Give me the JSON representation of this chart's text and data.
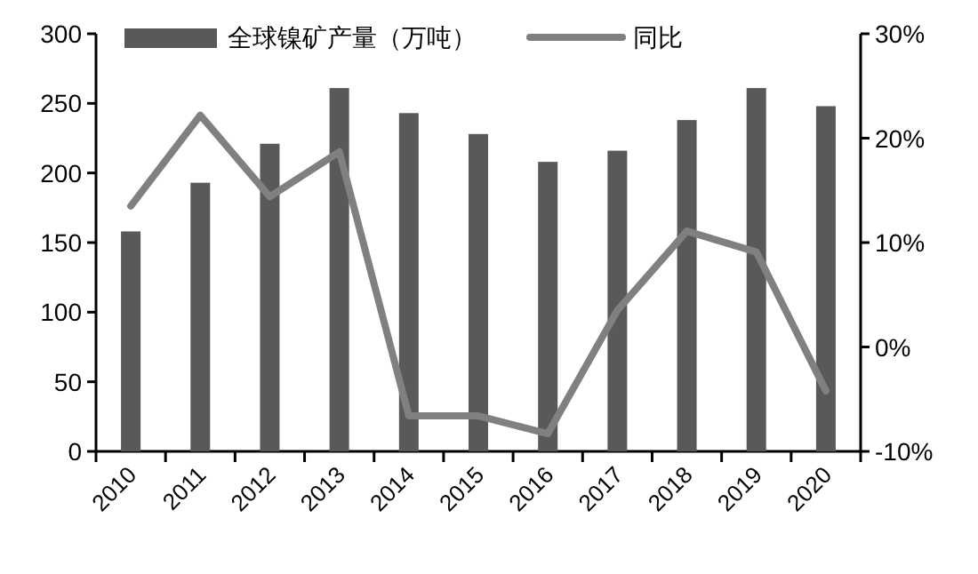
{
  "chart_data": {
    "type": "bar",
    "categories": [
      "2010",
      "2011",
      "2012",
      "2013",
      "2014",
      "2015",
      "2016",
      "2017",
      "2018",
      "2019",
      "2020"
    ],
    "series": [
      {
        "name": "全球镍矿产量（万吨）",
        "color": "#595959",
        "values": [
          158,
          193,
          221,
          261,
          243,
          228,
          208,
          216,
          238,
          261,
          248
        ]
      },
      {
        "name": "同比",
        "type": "line",
        "axis": "y2",
        "color": "#808080",
        "values": [
          13.5,
          22.2,
          14.4,
          18.7,
          -6.6,
          -6.6,
          -8.3,
          3.5,
          11.1,
          9.1,
          -4.2
        ]
      }
    ],
    "ylim": [
      0,
      300
    ],
    "yticks": [
      0,
      50,
      100,
      150,
      200,
      250,
      300
    ],
    "y2lim": [
      -10,
      30
    ],
    "y2ticks": [
      {
        "value": -10,
        "label": "-10%"
      },
      {
        "value": 0,
        "label": "0%"
      },
      {
        "value": 10,
        "label": "10%"
      },
      {
        "value": 20,
        "label": "20%"
      },
      {
        "value": 30,
        "label": "30%"
      }
    ],
    "legend": "top"
  }
}
